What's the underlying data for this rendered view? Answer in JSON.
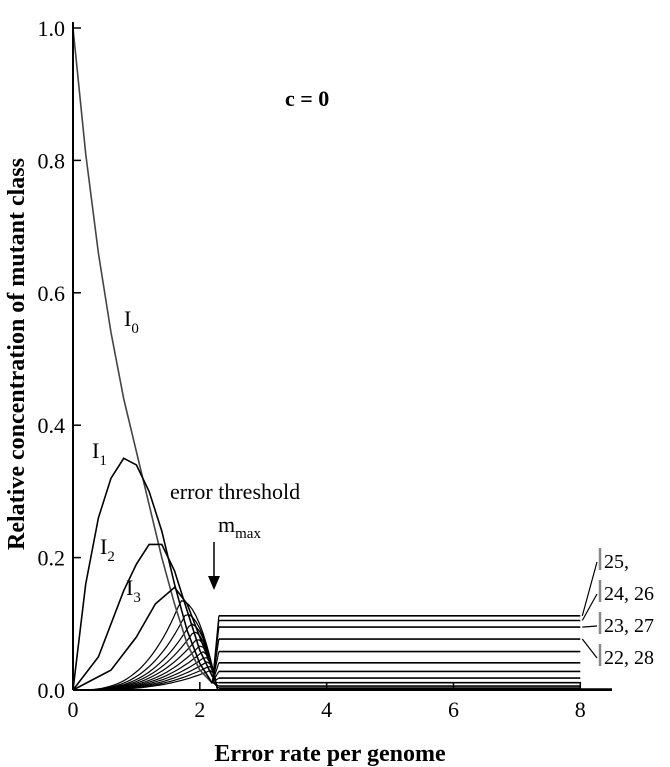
{
  "chart_data": {
    "type": "line",
    "xlabel": "Error rate per genome",
    "ylabel": "Relative concentration of mutant class",
    "xlim": [
      0,
      8.5
    ],
    "ylim": [
      0,
      1.0
    ],
    "x_ticks": [
      "0",
      "2",
      "4",
      "6",
      "8"
    ],
    "y_ticks": [
      "0.0",
      "0.2",
      "0.4",
      "0.6",
      "0.8",
      "1.0"
    ],
    "grid": false,
    "annotations": {
      "condition": "c = 0",
      "threshold_label": "error threshold",
      "mmax_main": "m",
      "mmax_sub": "max"
    },
    "series": [
      {
        "name": "I",
        "subscript": "0",
        "x": [
          0,
          0.2,
          0.4,
          0.6,
          0.8,
          1.0,
          1.2,
          1.4,
          1.6,
          1.8,
          2.0,
          2.2
        ],
        "y": [
          1.0,
          0.81,
          0.66,
          0.54,
          0.44,
          0.36,
          0.28,
          0.2,
          0.13,
          0.07,
          0.03,
          0.01
        ]
      },
      {
        "name": "I",
        "subscript": "1",
        "x": [
          0,
          0.2,
          0.4,
          0.6,
          0.8,
          1.0,
          1.2,
          1.4,
          1.6,
          1.8,
          2.0,
          2.2
        ],
        "y": [
          0,
          0.16,
          0.26,
          0.32,
          0.35,
          0.34,
          0.3,
          0.24,
          0.16,
          0.09,
          0.04,
          0.01
        ]
      },
      {
        "name": "I",
        "subscript": "2",
        "x": [
          0,
          0.4,
          0.8,
          1.0,
          1.2,
          1.4,
          1.6,
          1.8,
          2.0,
          2.2
        ],
        "y": [
          0,
          0.05,
          0.15,
          0.19,
          0.22,
          0.22,
          0.18,
          0.12,
          0.06,
          0.02
        ]
      },
      {
        "name": "I",
        "subscript": "3",
        "x": [
          0,
          0.6,
          1.0,
          1.3,
          1.6,
          1.8,
          2.0,
          2.2
        ],
        "y": [
          0,
          0.03,
          0.08,
          0.13,
          0.155,
          0.13,
          0.08,
          0.03
        ]
      }
    ],
    "background_curves": [
      {
        "peak_x": 1.7,
        "peak_y": 0.135
      },
      {
        "peak_x": 1.78,
        "peak_y": 0.115
      },
      {
        "peak_x": 1.85,
        "peak_y": 0.1
      },
      {
        "peak_x": 1.9,
        "peak_y": 0.088
      },
      {
        "peak_x": 1.95,
        "peak_y": 0.077
      },
      {
        "peak_x": 2.0,
        "peak_y": 0.067
      },
      {
        "peak_x": 2.04,
        "peak_y": 0.058
      },
      {
        "peak_x": 2.08,
        "peak_y": 0.05
      },
      {
        "peak_x": 2.12,
        "peak_y": 0.043
      },
      {
        "peak_x": 2.15,
        "peak_y": 0.036
      },
      {
        "peak_x": 2.18,
        "peak_y": 0.03
      }
    ],
    "plateaus": {
      "x_start": 2.3,
      "x_end": 8.0,
      "levels": [
        0.112,
        0.105,
        0.095,
        0.077,
        0.058,
        0.041,
        0.028,
        0.018,
        0.011,
        0.006,
        0.003
      ],
      "labels": [
        {
          "text": "25,",
          "y": 0.112
        },
        {
          "text": "24, 26",
          "y": 0.105
        },
        {
          "text": "23, 27",
          "y": 0.095
        },
        {
          "text": "22, 28",
          "y": 0.077
        }
      ]
    }
  }
}
